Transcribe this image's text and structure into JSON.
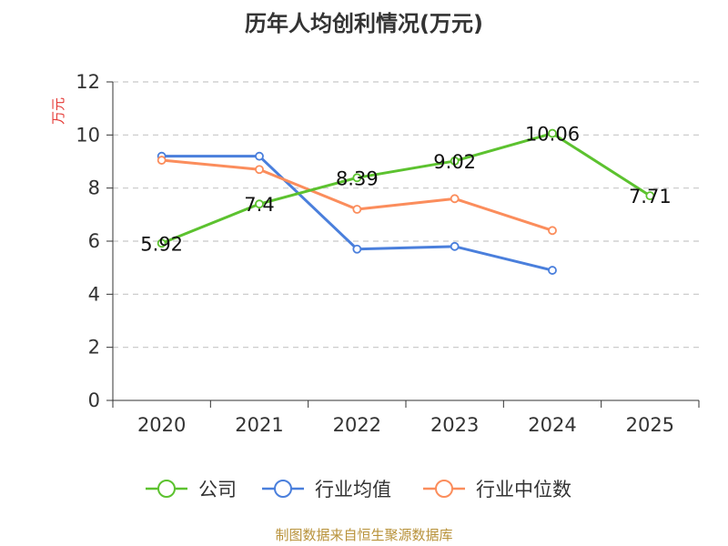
{
  "title": "历年人均创利情况(万元)",
  "footer": "制图数据来自恒生聚源数据库",
  "chart_data": {
    "type": "line",
    "title": "历年人均创利情况(万元)",
    "xlabel": "",
    "ylabel": "万元",
    "categories": [
      "2020",
      "2021",
      "2022",
      "2023",
      "2024",
      "2025"
    ],
    "ylim": [
      0,
      12
    ],
    "yticks": [
      0,
      2,
      4,
      6,
      8,
      10,
      12
    ],
    "grid": true,
    "legend_position": "bottom",
    "series": [
      {
        "name": "公司",
        "color": "#5cc22f",
        "show_labels": true,
        "labels": [
          "5.92",
          "7.4",
          "8.39",
          "9.02",
          "10.06",
          "7.71"
        ],
        "values": [
          5.92,
          7.4,
          8.39,
          9.02,
          10.06,
          7.71
        ]
      },
      {
        "name": "行业均值",
        "color": "#4a7fdc",
        "show_labels": false,
        "values": [
          9.2,
          9.2,
          5.7,
          5.8,
          4.9,
          null
        ]
      },
      {
        "name": "行业中位数",
        "color": "#fb8d5c",
        "show_labels": false,
        "values": [
          9.05,
          8.7,
          7.2,
          7.6,
          6.4,
          null
        ]
      }
    ]
  }
}
